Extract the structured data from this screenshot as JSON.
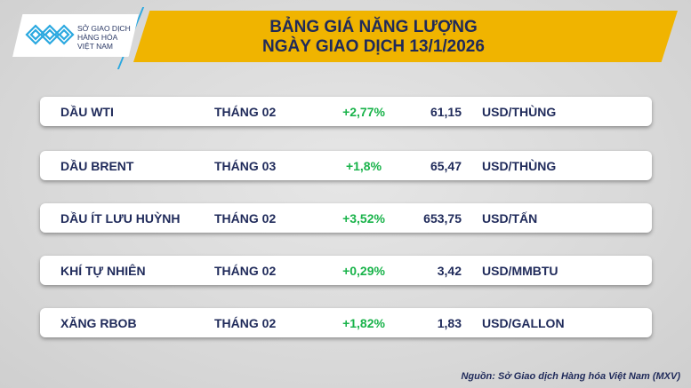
{
  "header": {
    "title_line1": "BẢNG GIÁ NĂNG LƯỢNG",
    "title_line2": "NGÀY GIAO DỊCH 13/1/2026"
  },
  "logo": {
    "line1": "SỞ GIAO DỊCH",
    "line2": "HÀNG HÓA",
    "line3": "VIỆT NAM",
    "icon": "mxv-logo-icon"
  },
  "colors": {
    "banner": "#f0b400",
    "text": "#1f2a5a",
    "positive": "#19b34a",
    "logo_blue": "#2aa8e0"
  },
  "rows": [
    {
      "name": "DẦU WTI",
      "month": "THÁNG 02",
      "change": "+2,77%",
      "price": "61,15",
      "unit": "USD/THÙNG"
    },
    {
      "name": "DẦU BRENT",
      "month": "THÁNG 03",
      "change": "+1,8%",
      "price": "65,47",
      "unit": "USD/THÙNG"
    },
    {
      "name": "DẦU ÍT LƯU HUỲNH",
      "month": "THÁNG 02",
      "change": "+3,52%",
      "price": "653,75",
      "unit": "USD/TẤN"
    },
    {
      "name": "KHÍ TỰ NHIÊN",
      "month": "THÁNG 02",
      "change": "+0,29%",
      "price": "3,42",
      "unit": "USD/MMBTU"
    },
    {
      "name": "XĂNG RBOB",
      "month": "THÁNG 02",
      "change": "+1,82%",
      "price": "1,83",
      "unit": "USD/GALLON"
    }
  ],
  "source": "Nguồn: Sở Giao dịch Hàng hóa Việt Nam (MXV)"
}
